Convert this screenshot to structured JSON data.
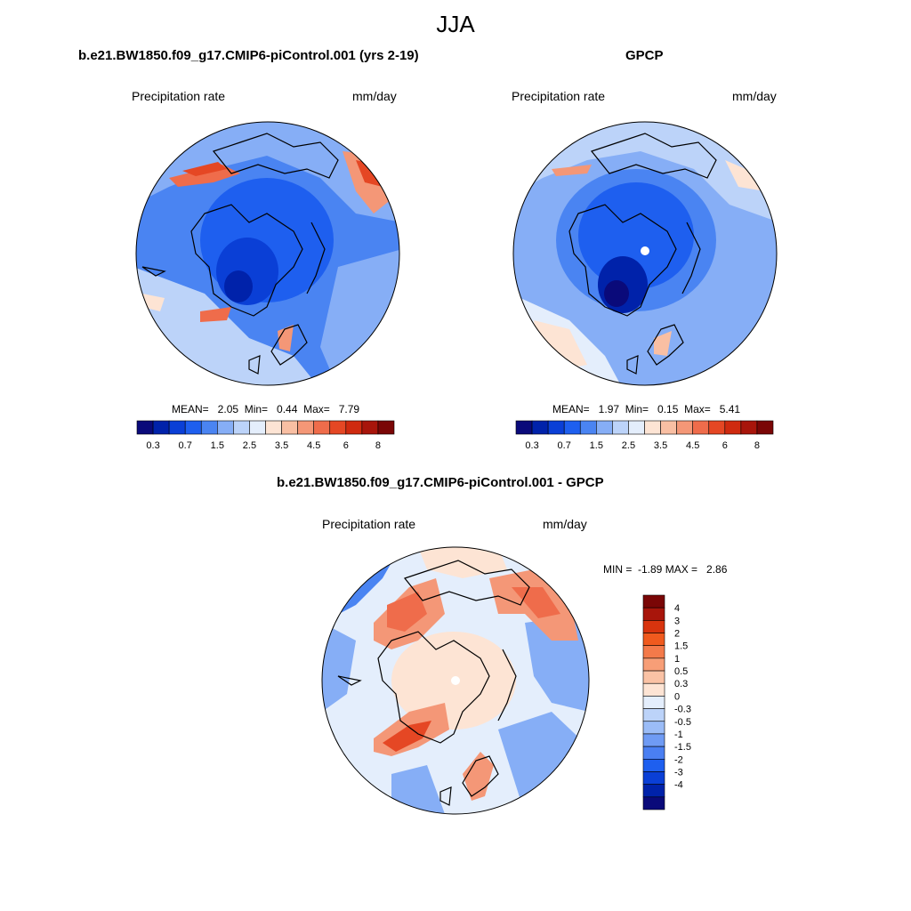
{
  "figure": {
    "season": "JJA"
  },
  "panels": {
    "model": {
      "title": "b.e21.BW1850.f09_g17.CMIP6-piControl.001 (yrs 2-19)",
      "left_label": "Precipitation rate",
      "right_label": "mm/day",
      "stats": "MEAN=   2.05  Min=   0.44  Max=   7.79"
    },
    "obs": {
      "title": "GPCP",
      "left_label": "Precipitation rate",
      "right_label": "mm/day",
      "stats": "MEAN=   1.97  Min=   0.15  Max=   5.41"
    },
    "diff": {
      "title": "b.e21.BW1850.f09_g17.CMIP6-piControl.001 - GPCP",
      "left_label": "Precipitation rate",
      "right_label": "mm/day",
      "stats": "MIN =  -1.89 MAX =   2.86"
    }
  },
  "colorbar_precip": {
    "colors": [
      "#0a0a7a",
      "#0022aa",
      "#0a3fd6",
      "#1e5fef",
      "#4a84f2",
      "#86aef6",
      "#bcd3f9",
      "#e4eefc",
      "#fde4d4",
      "#f9bfa3",
      "#f49777",
      "#ef6c4b",
      "#e54724",
      "#cf2a0f",
      "#a8150b",
      "#7a0606"
    ],
    "labels": [
      "0.3",
      "0.7",
      "1.5",
      "2.5",
      "3.5",
      "4.5",
      "6",
      "8"
    ]
  },
  "colorbar_diff": {
    "colors": [
      "#7a0606",
      "#a8150b",
      "#d8340e",
      "#f05a1e",
      "#f47a4a",
      "#f79e77",
      "#fac2a5",
      "#fde4d4",
      "#e4eefc",
      "#bcd3f9",
      "#9bbcf7",
      "#6f9bf4",
      "#4a7ff2",
      "#1e5fef",
      "#0a3fd6",
      "#0022aa",
      "#0a0a7a"
    ],
    "labels": [
      "4",
      "3",
      "2",
      "1.5",
      "1",
      "0.5",
      "0.3",
      "0",
      "-0.3",
      "-0.5",
      "-1",
      "-1.5",
      "-2",
      "-3",
      "-4"
    ]
  }
}
